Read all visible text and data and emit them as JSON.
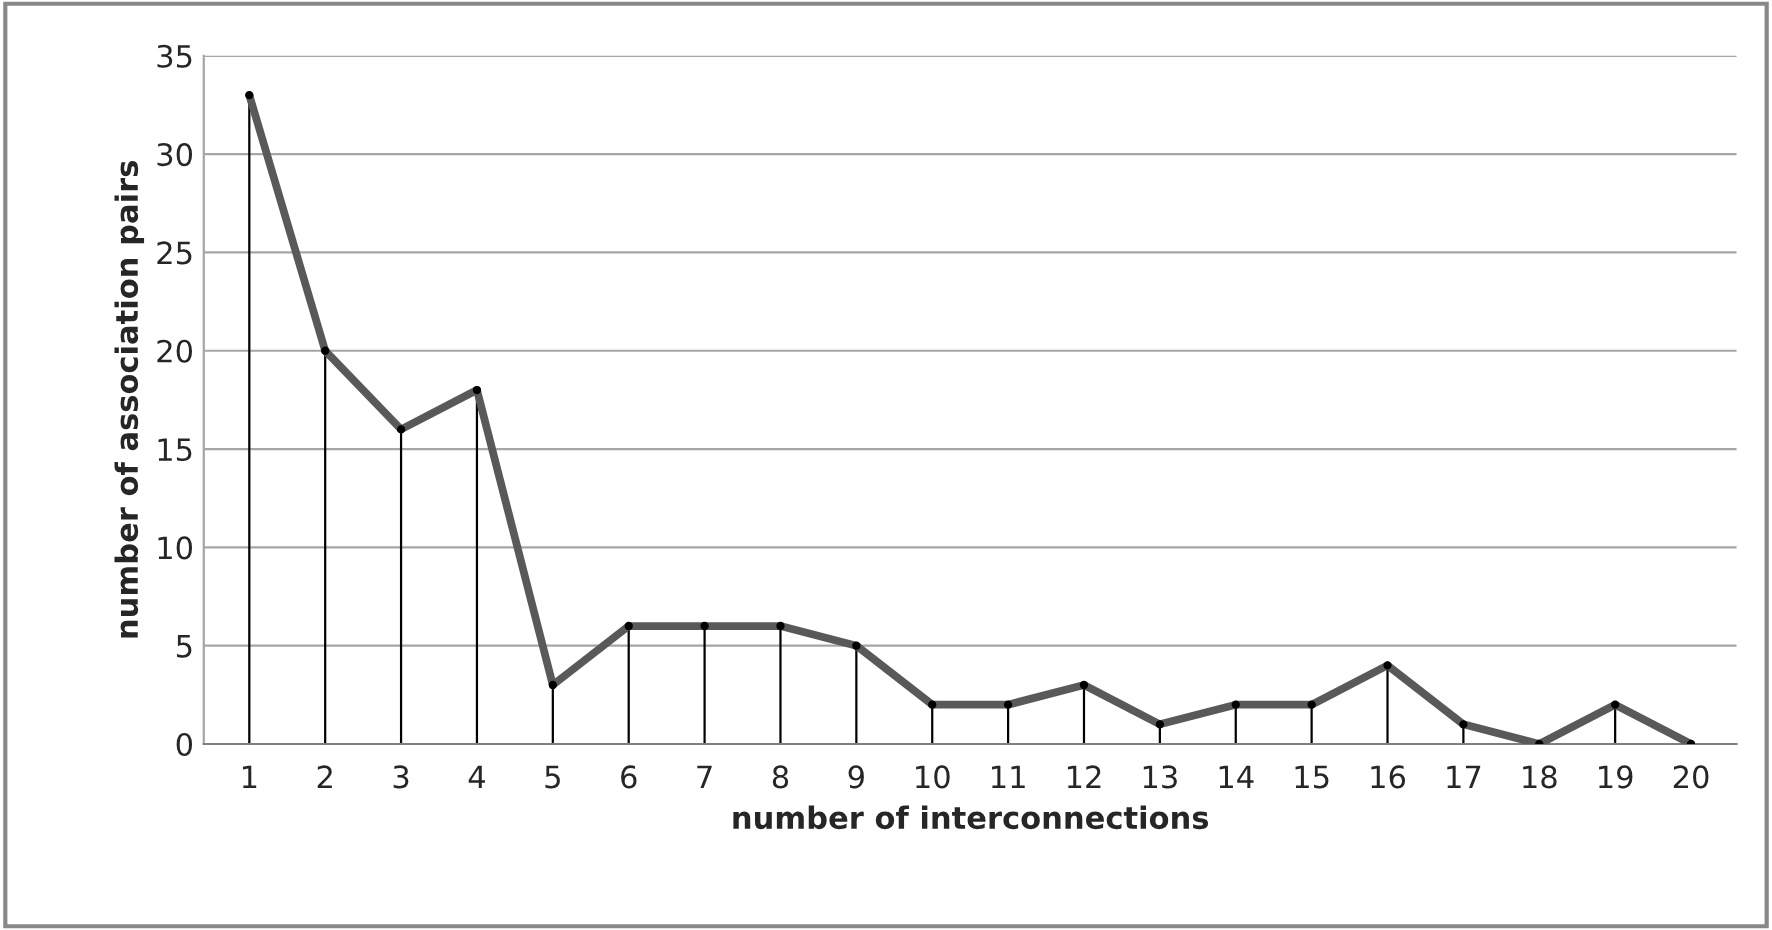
{
  "chart_data": {
    "type": "line",
    "xlabel": "number of interconnections",
    "ylabel": "number of association pairs",
    "categories": [
      "1",
      "2",
      "3",
      "4",
      "5",
      "6",
      "7",
      "8",
      "9",
      "10",
      "11",
      "12",
      "13",
      "14",
      "15",
      "16",
      "17",
      "18",
      "19",
      "20"
    ],
    "series": [
      {
        "type": "lollipop",
        "color": "#000000",
        "marker": "circle",
        "values": [
          33,
          20,
          16,
          18,
          3,
          6,
          6,
          6,
          5,
          2,
          2,
          3,
          1,
          2,
          2,
          4,
          1,
          0,
          2,
          0
        ]
      },
      {
        "color": "#595959",
        "values": [
          33,
          20,
          16,
          18,
          3,
          6,
          6,
          6,
          5,
          2,
          2,
          3,
          1,
          2,
          2,
          4,
          1,
          0,
          2,
          0
        ]
      }
    ],
    "ylim": [
      0,
      35
    ],
    "yticks": [
      0,
      5,
      10,
      15,
      20,
      25,
      30,
      35
    ],
    "grid": "y",
    "legend": false,
    "marker": "none",
    "line_style": "solid"
  }
}
